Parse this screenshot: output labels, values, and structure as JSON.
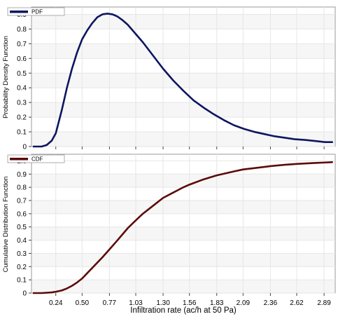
{
  "chart_data": [
    {
      "type": "line",
      "ylabel": "Probability Density Function",
      "ylim": [
        0,
        0.95
      ],
      "yticks": [
        0,
        0.1,
        0.2,
        0.3,
        0.4,
        0.5,
        0.6,
        0.7,
        0.8,
        0.9
      ],
      "ytick_labels": [
        "0",
        "0.1",
        "0.2",
        "0.3",
        "0.4",
        "0.5",
        "0.6",
        "0.7",
        "0.8",
        "0.9"
      ],
      "xlim": [
        0.0,
        3.0
      ],
      "grid": true,
      "legend": "top-left",
      "series": [
        {
          "name": "PDF",
          "color": "#0d1660",
          "x": [
            0.02,
            0.1,
            0.15,
            0.2,
            0.24,
            0.3,
            0.35,
            0.4,
            0.45,
            0.5,
            0.55,
            0.6,
            0.65,
            0.7,
            0.75,
            0.8,
            0.85,
            0.9,
            0.95,
            1.0,
            1.1,
            1.2,
            1.3,
            1.4,
            1.5,
            1.6,
            1.7,
            1.8,
            1.9,
            2.0,
            2.1,
            2.2,
            2.3,
            2.4,
            2.5,
            2.6,
            2.7,
            2.8,
            2.9,
            2.97
          ],
          "y": [
            0.0,
            0.0,
            0.01,
            0.04,
            0.09,
            0.25,
            0.4,
            0.53,
            0.64,
            0.73,
            0.79,
            0.84,
            0.88,
            0.9,
            0.905,
            0.9,
            0.885,
            0.86,
            0.83,
            0.79,
            0.71,
            0.62,
            0.53,
            0.45,
            0.38,
            0.315,
            0.265,
            0.22,
            0.18,
            0.145,
            0.12,
            0.1,
            0.085,
            0.07,
            0.06,
            0.05,
            0.045,
            0.038,
            0.03,
            0.03
          ]
        }
      ]
    },
    {
      "type": "line",
      "ylabel": "Cumulative Distribution Function",
      "xlabel": "Infiltration rate (ac/h at 50 Pa)",
      "ylim": [
        0,
        1.05
      ],
      "yticks": [
        0,
        0.1,
        0.2,
        0.3,
        0.4,
        0.5,
        0.6,
        0.7,
        0.8,
        0.9,
        1.0
      ],
      "ytick_labels": [
        "0",
        "0.1",
        "0.2",
        "0.3",
        "0.4",
        "0.5",
        "0.6",
        "0.7",
        "0.8",
        "0.9",
        "1.0"
      ],
      "xlim": [
        0.0,
        3.0
      ],
      "xticks": [
        0.24,
        0.5,
        0.77,
        1.03,
        1.3,
        1.56,
        1.83,
        2.09,
        2.36,
        2.62,
        2.89
      ],
      "xtick_labels": [
        "0.24",
        "0.50",
        "0.77",
        "1.03",
        "1.30",
        "1.56",
        "1.83",
        "2.09",
        "2.36",
        "2.62",
        "2.89"
      ],
      "grid": true,
      "legend": "top-left",
      "series": [
        {
          "name": "CDF",
          "color": "#5c0a0a",
          "x": [
            0.02,
            0.1,
            0.2,
            0.24,
            0.3,
            0.35,
            0.4,
            0.45,
            0.5,
            0.55,
            0.6,
            0.7,
            0.77,
            0.85,
            0.95,
            1.03,
            1.1,
            1.2,
            1.3,
            1.4,
            1.5,
            1.56,
            1.7,
            1.83,
            2.0,
            2.09,
            2.2,
            2.36,
            2.5,
            2.62,
            2.7,
            2.8,
            2.89,
            2.97
          ],
          "y": [
            0.0,
            0.0,
            0.005,
            0.01,
            0.02,
            0.035,
            0.055,
            0.08,
            0.11,
            0.15,
            0.19,
            0.27,
            0.33,
            0.4,
            0.49,
            0.55,
            0.6,
            0.66,
            0.72,
            0.76,
            0.8,
            0.82,
            0.86,
            0.89,
            0.92,
            0.935,
            0.945,
            0.96,
            0.97,
            0.977,
            0.98,
            0.984,
            0.987,
            0.99
          ]
        }
      ]
    }
  ]
}
